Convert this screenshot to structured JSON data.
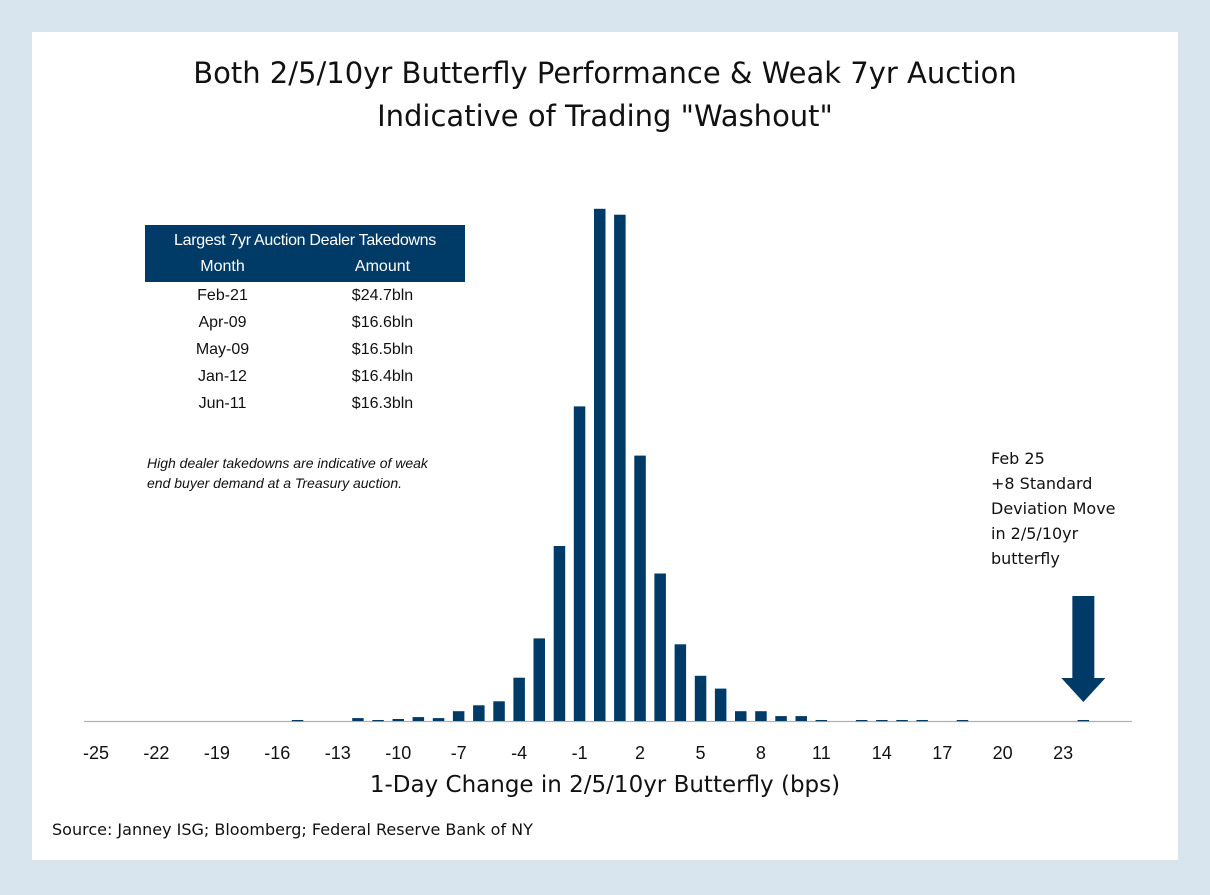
{
  "title_lines": [
    "Both 2/5/10yr Butterfly Performance & Weak 7yr Auction",
    "Indicative of Trading \"Washout\""
  ],
  "chart_data": {
    "type": "bar",
    "title": "Both 2/5/10yr Butterfly Performance & Weak 7yr Auction Indicative of Trading \"Washout\"",
    "xlabel": "1-Day Change in 2/5/10yr Butterfly (bps)",
    "ylabel": "",
    "x": [
      -25,
      -24,
      -23,
      -22,
      -21,
      -20,
      -19,
      -18,
      -17,
      -16,
      -15,
      -14,
      -13,
      -12,
      -11,
      -10,
      -9,
      -8,
      -7,
      -6,
      -5,
      -4,
      -3,
      -2,
      -1,
      0,
      1,
      2,
      3,
      4,
      5,
      6,
      7,
      8,
      9,
      10,
      11,
      12,
      13,
      14,
      15,
      16,
      17,
      18,
      19,
      20,
      21,
      22,
      23,
      24
    ],
    "values": [
      0,
      0,
      0,
      0,
      0,
      0,
      0,
      0,
      0,
      0,
      1,
      0,
      0,
      3,
      1,
      2,
      4,
      3,
      10,
      16,
      20,
      44,
      84,
      178,
      320,
      521,
      515,
      270,
      150,
      78,
      46,
      33,
      10,
      10,
      5,
      5,
      1,
      0,
      1,
      1,
      1,
      1,
      0,
      1,
      0,
      0,
      0,
      0,
      0,
      1
    ],
    "x_ticks": [
      -25,
      -22,
      -19,
      -16,
      -13,
      -10,
      -7,
      -4,
      -1,
      2,
      5,
      8,
      11,
      14,
      17,
      20,
      23
    ],
    "ylim": [
      0,
      530
    ],
    "grid": false,
    "bar_color": "#003a66",
    "arrow_color": "#003a66",
    "arrow_at_x": 24
  },
  "table": {
    "title": "Largest 7yr Auction Dealer Takedowns",
    "col_month": "Month",
    "col_amount": "Amount",
    "rows": [
      {
        "month": "Feb-21",
        "amount": "$24.7bln"
      },
      {
        "month": "Apr-09",
        "amount": "$16.6bln"
      },
      {
        "month": "May-09",
        "amount": "$16.5bln"
      },
      {
        "month": "Jan-12",
        "amount": "$16.4bln"
      },
      {
        "month": "Jun-11",
        "amount": "$16.3bln"
      }
    ]
  },
  "note_lines": [
    "High dealer takedowns are indicative of weak",
    "end buyer demand at a Treasury auction."
  ],
  "annotation_lines": [
    "Feb 25",
    "+8 Standard",
    "Deviation Move",
    "in 2/5/10yr",
    "butterfly"
  ],
  "xlabel": "1-Day Change in 2/5/10yr Butterfly (bps)",
  "source": "Source: Janney ISG; Bloomberg; Federal Reserve Bank of NY"
}
